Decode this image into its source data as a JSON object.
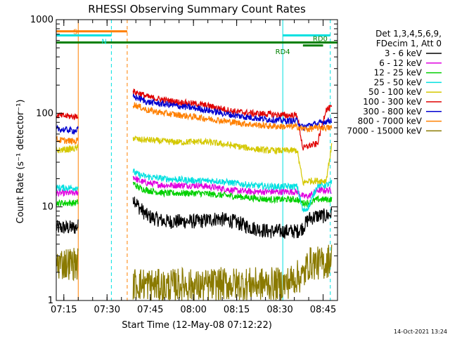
{
  "colors": {
    "black": "#000000",
    "magenta": "#e000e0",
    "green": "#00d000",
    "cyan": "#00e0e0",
    "yellow": "#d4c800",
    "red": "#e00000",
    "blue": "#0000d0",
    "orange": "#ff8000",
    "olive": "#8a7a00",
    "darkgreen": "#008000"
  },
  "chart_data": {
    "type": "line",
    "title": "RHESSI Observing Summary Count Rates",
    "xlabel": "Start Time (12-May-08 07:12:22)",
    "ylabel": "Count Rate (s⁻¹ detector⁻¹)",
    "footer": "14-Oct-2021 13:24",
    "y_scale": "log",
    "ylim": [
      1,
      1000
    ],
    "xlim": [
      "07:12:22",
      "08:50:00"
    ],
    "y_ticks": [
      1,
      10,
      100,
      1000
    ],
    "y_tick_labels": [
      "1",
      "10",
      "100",
      "1000"
    ],
    "x_ticks": [
      "07:15",
      "07:30",
      "07:45",
      "08:00",
      "08:15",
      "08:30",
      "08:45"
    ],
    "legend": {
      "placement": "right",
      "header": [
        "Det 1,3,4,5,6,9,",
        "FDecim 1, Att 0"
      ],
      "entries": [
        {
          "label": "3 - 6 keV",
          "color": "#000000"
        },
        {
          "label": "6 - 12 keV",
          "color": "#e000e0"
        },
        {
          "label": "12 - 25 keV",
          "color": "#00d000"
        },
        {
          "label": "25 - 50 keV",
          "color": "#00e0e0"
        },
        {
          "label": "50 - 100 keV",
          "color": "#d4c800"
        },
        {
          "label": "100 - 300 keV",
          "color": "#e00000"
        },
        {
          "label": "300 - 800 keV",
          "color": "#0000d0"
        },
        {
          "label": "800 - 7000 keV",
          "color": "#ff8000"
        },
        {
          "label": "7000 - 15000 keV",
          "color": "#8a7a00"
        }
      ]
    },
    "annotations": [
      {
        "text": "S",
        "color": "#ff8000"
      },
      {
        "text": "N",
        "color": "#00e0e0"
      },
      {
        "text": "RD0",
        "color": "#008000"
      },
      {
        "text": "RD4",
        "color": "#008000"
      }
    ],
    "flag_bars": [
      {
        "label": "S",
        "color": "#ff8000",
        "start": "07:12:22",
        "end": "07:37:00",
        "value": 750
      },
      {
        "label": "N",
        "color": "#00e0e0",
        "start": "07:12:22",
        "end": "07:31:30",
        "value": 680
      },
      {
        "label": "N",
        "color": "#00e0e0",
        "start": "08:31:00",
        "end": "08:47:30",
        "value": 680
      },
      {
        "label": "RD0",
        "color": "#008000",
        "start": "07:12:22",
        "end": "08:50:00",
        "value": 570
      },
      {
        "label": "RD4",
        "color": "#008000",
        "start": "08:38:00",
        "end": "08:45:00",
        "value": 530
      }
    ],
    "vertical_markers": [
      {
        "time": "07:20:00",
        "color": "#ff8000",
        "style": "solid"
      },
      {
        "time": "07:31:30",
        "color": "#00e0e0",
        "style": "dashed"
      },
      {
        "time": "07:37:00",
        "color": "#ff8000",
        "style": "dashed"
      },
      {
        "time": "08:31:00",
        "color": "#00e0e0",
        "style": "solid"
      },
      {
        "time": "08:47:30",
        "color": "#00e0e0",
        "style": "dashed"
      }
    ],
    "gaps": [
      [
        "07:20:00",
        "07:39:00"
      ]
    ],
    "series": [
      {
        "name": "3 - 6 keV",
        "color": "#000000",
        "x": [
          "07:12:22",
          "07:19:00",
          "07:39:00",
          "07:41:00",
          "07:44:00",
          "07:50:00",
          "07:56:00",
          "08:02:00",
          "08:08:00",
          "08:14:00",
          "08:20:00",
          "08:26:00",
          "08:32:00",
          "08:36:00",
          "08:38:00",
          "08:40:00",
          "08:43:00",
          "08:46:00",
          "08:48:00"
        ],
        "y": [
          6,
          6,
          13,
          10,
          8,
          7,
          7,
          7,
          7.5,
          7,
          6,
          5.5,
          5.5,
          5.5,
          6,
          7.5,
          8,
          8,
          8.5
        ]
      },
      {
        "name": "6 - 12 keV",
        "color": "#e000e0",
        "x": [
          "07:12:22",
          "07:19:00",
          "07:39:00",
          "07:41:00",
          "07:44:00",
          "07:50:00",
          "07:56:00",
          "08:02:00",
          "08:08:00",
          "08:14:00",
          "08:20:00",
          "08:26:00",
          "08:32:00",
          "08:36:00",
          "08:38:00",
          "08:40:00",
          "08:43:00",
          "08:46:00",
          "08:48:00"
        ],
        "y": [
          14,
          14,
          21,
          19,
          18,
          17,
          17,
          17,
          16,
          15,
          14.5,
          14.5,
          14.5,
          14.5,
          13,
          13,
          15,
          15,
          15
        ]
      },
      {
        "name": "12 - 25 keV",
        "color": "#00d000",
        "x": [
          "07:12:22",
          "07:19:00",
          "07:39:00",
          "07:41:00",
          "07:44:00",
          "07:50:00",
          "07:56:00",
          "08:02:00",
          "08:08:00",
          "08:14:00",
          "08:20:00",
          "08:26:00",
          "08:32:00",
          "08:36:00",
          "08:38:00",
          "08:40:00",
          "08:43:00",
          "08:46:00",
          "08:48:00"
        ],
        "y": [
          11,
          11,
          18,
          16,
          15,
          14,
          14,
          14,
          13.5,
          13,
          12.5,
          12,
          12,
          12,
          11,
          11,
          12,
          12,
          12
        ]
      },
      {
        "name": "25 - 50 keV",
        "color": "#00e0e0",
        "x": [
          "07:12:22",
          "07:19:00",
          "07:39:00",
          "07:41:00",
          "07:44:00",
          "07:50:00",
          "07:56:00",
          "08:02:00",
          "08:08:00",
          "08:14:00",
          "08:20:00",
          "08:26:00",
          "08:32:00",
          "08:36:00",
          "08:38:00",
          "08:40:00",
          "08:43:00",
          "08:46:00",
          "08:48:00"
        ],
        "y": [
          16,
          16,
          24,
          22,
          21,
          20,
          19.5,
          19,
          19,
          18,
          17,
          16.5,
          16.5,
          16.5,
          9,
          10,
          17,
          17,
          18
        ]
      },
      {
        "name": "50 - 100 keV",
        "color": "#d4c800",
        "x": [
          "07:12:22",
          "07:19:00",
          "07:39:00",
          "07:41:00",
          "07:44:00",
          "07:50:00",
          "07:56:00",
          "08:02:00",
          "08:08:00",
          "08:14:00",
          "08:20:00",
          "08:26:00",
          "08:32:00",
          "08:36:00",
          "08:38:00",
          "08:40:00",
          "08:43:00",
          "08:46:00",
          "08:48:00"
        ],
        "y": [
          40,
          42,
          55,
          52,
          52,
          50,
          49,
          50,
          48,
          45,
          42,
          40,
          40,
          40,
          18,
          19,
          19,
          19,
          45
        ]
      },
      {
        "name": "100 - 300 keV",
        "color": "#e00000",
        "x": [
          "07:12:22",
          "07:19:00",
          "07:39:00",
          "07:41:00",
          "07:44:00",
          "07:50:00",
          "07:56:00",
          "08:02:00",
          "08:08:00",
          "08:14:00",
          "08:20:00",
          "08:26:00",
          "08:32:00",
          "08:36:00",
          "08:38:00",
          "08:40:00",
          "08:43:00",
          "08:46:00",
          "08:48:00"
        ],
        "y": [
          95,
          92,
          170,
          165,
          150,
          138,
          130,
          125,
          115,
          105,
          100,
          98,
          95,
          95,
          42,
          45,
          47,
          110,
          115
        ]
      },
      {
        "name": "300 - 800 keV",
        "color": "#0000d0",
        "x": [
          "07:12:22",
          "07:19:00",
          "07:39:00",
          "07:41:00",
          "07:44:00",
          "07:50:00",
          "07:56:00",
          "08:02:00",
          "08:08:00",
          "08:14:00",
          "08:20:00",
          "08:26:00",
          "08:32:00",
          "08:36:00",
          "08:38:00",
          "08:40:00",
          "08:43:00",
          "08:46:00",
          "08:48:00"
        ],
        "y": [
          68,
          65,
          150,
          145,
          132,
          125,
          118,
          112,
          103,
          95,
          90,
          86,
          83,
          83,
          70,
          75,
          77,
          82,
          85
        ]
      },
      {
        "name": "800 - 7000 keV",
        "color": "#ff8000",
        "x": [
          "07:12:22",
          "07:19:00",
          "07:39:00",
          "07:41:00",
          "07:44:00",
          "07:50:00",
          "07:56:00",
          "08:02:00",
          "08:08:00",
          "08:14:00",
          "08:20:00",
          "08:26:00",
          "08:32:00",
          "08:36:00",
          "08:38:00",
          "08:40:00",
          "08:43:00",
          "08:46:00",
          "08:48:00"
        ],
        "y": [
          52,
          50,
          125,
          118,
          108,
          100,
          95,
          90,
          85,
          80,
          76,
          73,
          72,
          72,
          68,
          68,
          70,
          70,
          70
        ]
      },
      {
        "name": "7000 - 15000 keV",
        "color": "#8a7a00",
        "x": [
          "07:12:22",
          "07:19:00",
          "07:39:00",
          "07:41:00",
          "07:44:00",
          "07:50:00",
          "07:56:00",
          "08:02:00",
          "08:08:00",
          "08:14:00",
          "08:20:00",
          "08:26:00",
          "08:32:00",
          "08:36:00",
          "08:38:00",
          "08:40:00",
          "08:43:00",
          "08:46:00",
          "08:48:00"
        ],
        "y": [
          2.5,
          2.5,
          1.5,
          1.5,
          1.5,
          1.4,
          1.5,
          1.4,
          1.5,
          1.5,
          1.5,
          1.5,
          1.5,
          1.8,
          1.8,
          2.5,
          2.5,
          2.5,
          3
        ]
      }
    ]
  }
}
